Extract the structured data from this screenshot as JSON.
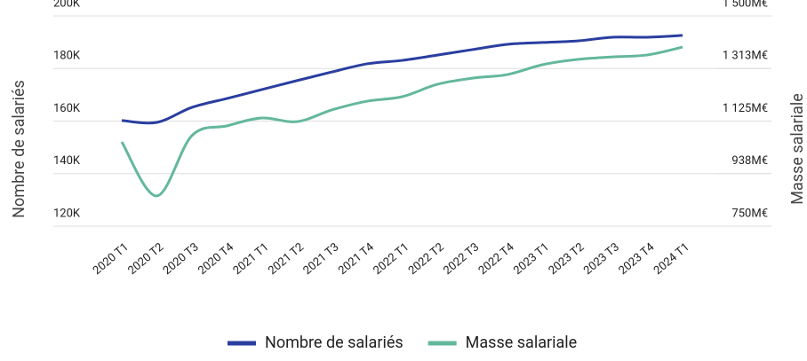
{
  "chart_data": {
    "type": "line",
    "categories": [
      "2020 T1",
      "2020 T2",
      "2020 T3",
      "2020 T4",
      "2021 T1",
      "2021 T2",
      "2021 T3",
      "2021 T4",
      "2022 T1",
      "2022 T2",
      "2022 T3",
      "2022 T4",
      "2023 T1",
      "2023 T2",
      "2023 T3",
      "2023 T4",
      "2024 T1"
    ],
    "y_label": "Nombre de salariés",
    "y2_label": "Masse salariale",
    "ylim": [
      120000,
      200000
    ],
    "yticks": [
      {
        "value": 120000,
        "label": "120K"
      },
      {
        "value": 140000,
        "label": "140K"
      },
      {
        "value": 160000,
        "label": "160K"
      },
      {
        "value": 180000,
        "label": "180K"
      },
      {
        "value": 200000,
        "label": "200K"
      }
    ],
    "y2lim": [
      750,
      1500
    ],
    "y2ticks": [
      {
        "value": 750,
        "label": "750M€"
      },
      {
        "value": 937.5,
        "label": "938M€"
      },
      {
        "value": 1125,
        "label": "1 125M€"
      },
      {
        "value": 1312.5,
        "label": "1 313M€"
      },
      {
        "value": 1500,
        "label": "1 500M€"
      }
    ],
    "grid": true,
    "legend": "bottom",
    "series": [
      {
        "name": "Nombre de salariés",
        "color": "#2a3ea0",
        "values": [
          160200,
          159500,
          165200,
          168600,
          172000,
          175400,
          178700,
          181800,
          183100,
          185100,
          187200,
          189200,
          189900,
          190500,
          191900,
          191900,
          192600
        ]
      },
      {
        "name": "Masse salariale",
        "color": "#63b89a",
        "axis": "y2",
        "values": [
          1051,
          858,
          1073,
          1108,
          1136,
          1123,
          1165,
          1196,
          1212,
          1256,
          1278,
          1291,
          1326,
          1345,
          1354,
          1361,
          1389
        ]
      }
    ]
  }
}
